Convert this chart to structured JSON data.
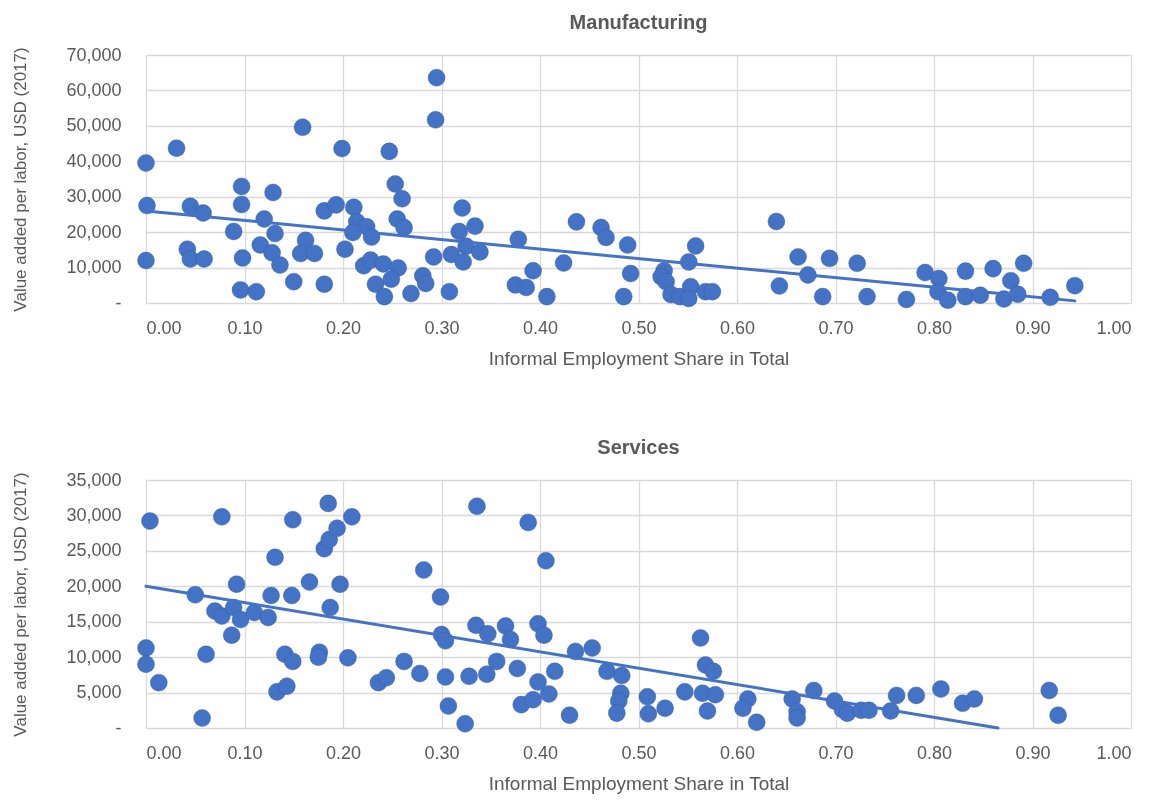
{
  "chart_data": [
    {
      "type": "scatter",
      "title": "Manufacturing",
      "xlabel": "Informal Employment Share in Total",
      "ylabel": "Value added per labor, USD (2017)",
      "xlim": [
        0,
        1
      ],
      "xticks": [
        {
          "value": 0,
          "label": "0.00"
        },
        {
          "value": 0.1,
          "label": "0.10"
        },
        {
          "value": 0.2,
          "label": "0.20"
        },
        {
          "value": 0.3,
          "label": "0.30"
        },
        {
          "value": 0.4,
          "label": "0.40"
        },
        {
          "value": 0.5,
          "label": "0.50"
        },
        {
          "value": 0.6,
          "label": "0.60"
        },
        {
          "value": 0.7,
          "label": "0.70"
        },
        {
          "value": 0.8,
          "label": "0.80"
        },
        {
          "value": 0.9,
          "label": "0.90"
        },
        {
          "value": 1,
          "label": "1.00"
        }
      ],
      "ylim": [
        0,
        70000
      ],
      "yticks": [
        {
          "value": 0,
          "label": "-"
        },
        {
          "value": 10000,
          "label": "10,000"
        },
        {
          "value": 20000,
          "label": "20,000"
        },
        {
          "value": 30000,
          "label": "30,000"
        },
        {
          "value": 40000,
          "label": "40,000"
        },
        {
          "value": 50000,
          "label": "50,000"
        },
        {
          "value": 60000,
          "label": "60,000"
        },
        {
          "value": 70000,
          "label": "70,000"
        }
      ],
      "grid": true,
      "marker": "circle",
      "series": [
        {
          "color": "#4472c4",
          "x": [
            0.0,
            0.031,
            0.001,
            0.0,
            0.045,
            0.058,
            0.042,
            0.045,
            0.059,
            0.089,
            0.097,
            0.097,
            0.098,
            0.096,
            0.112,
            0.12,
            0.129,
            0.131,
            0.116,
            0.128,
            0.136,
            0.15,
            0.159,
            0.162,
            0.157,
            0.171,
            0.181,
            0.181,
            0.193,
            0.199,
            0.202,
            0.211,
            0.214,
            0.224,
            0.21,
            0.229,
            0.221,
            0.228,
            0.241,
            0.256,
            0.233,
            0.242,
            0.249,
            0.247,
            0.253,
            0.26,
            0.255,
            0.262,
            0.269,
            0.281,
            0.284,
            0.292,
            0.295,
            0.294,
            0.308,
            0.31,
            0.321,
            0.318,
            0.334,
            0.325,
            0.322,
            0.339,
            0.378,
            0.375,
            0.386,
            0.393,
            0.407,
            0.424,
            0.437,
            0.462,
            0.467,
            0.489,
            0.492,
            0.485,
            0.526,
            0.523,
            0.528,
            0.533,
            0.542,
            0.551,
            0.558,
            0.553,
            0.551,
            0.568,
            0.575,
            0.64,
            0.643,
            0.662,
            0.672,
            0.687,
            0.694,
            0.722,
            0.732,
            0.772,
            0.791,
            0.805,
            0.804,
            0.814,
            0.832,
            0.832,
            0.847,
            0.86,
            0.878,
            0.871,
            0.885,
            0.891,
            0.918,
            0.943
          ],
          "values": [
            39500,
            43700,
            27500,
            12000,
            27300,
            25400,
            15200,
            12400,
            12400,
            20200,
            32900,
            27800,
            12700,
            3700,
            3200,
            23700,
            31200,
            19600,
            16400,
            14200,
            10700,
            6000,
            49600,
            17700,
            14000,
            14000,
            5300,
            26000,
            27700,
            43600,
            15200,
            27000,
            22900,
            21500,
            19900,
            18600,
            10500,
            12100,
            11000,
            9900,
            5300,
            1800,
            6700,
            42800,
            33600,
            29400,
            23700,
            21300,
            2700,
            7700,
            5500,
            13000,
            63600,
            51700,
            3200,
            13700,
            26800,
            20200,
            21700,
            16000,
            11600,
            14400,
            18000,
            5100,
            4400,
            9100,
            1800,
            11300,
            22900,
            21300,
            18500,
            16400,
            8300,
            1800,
            9100,
            7400,
            6000,
            2400,
            1800,
            11600,
            16100,
            4600,
            1300,
            3200,
            3200,
            23000,
            4800,
            13000,
            7900,
            1800,
            12600,
            11200,
            1800,
            1000,
            8600,
            6900,
            3200,
            800,
            9000,
            1800,
            2200,
            9700,
            6300,
            1100,
            2500,
            11200,
            1600,
            4900
          ]
        },
        {
          "type": "line",
          "color": "#4472c4",
          "marker": "none",
          "x": [
            0,
            0.943
          ],
          "values": [
            26000,
            600
          ]
        }
      ]
    },
    {
      "type": "scatter",
      "title": "Services",
      "xlabel": "Informal Employment Share in Total",
      "ylabel": "Value added per labor, USD (2017)",
      "xlim": [
        0,
        1
      ],
      "xticks": [
        {
          "value": 0,
          "label": "0.00"
        },
        {
          "value": 0.1,
          "label": "0.10"
        },
        {
          "value": 0.2,
          "label": "0.20"
        },
        {
          "value": 0.3,
          "label": "0.30"
        },
        {
          "value": 0.4,
          "label": "0.40"
        },
        {
          "value": 0.5,
          "label": "0.50"
        },
        {
          "value": 0.6,
          "label": "0.60"
        },
        {
          "value": 0.7,
          "label": "0.70"
        },
        {
          "value": 0.8,
          "label": "0.80"
        },
        {
          "value": 0.9,
          "label": "0.90"
        },
        {
          "value": 1,
          "label": "1.00"
        }
      ],
      "ylim": [
        0,
        35000
      ],
      "yticks": [
        {
          "value": 0,
          "label": "-"
        },
        {
          "value": 5000,
          "label": "5,000"
        },
        {
          "value": 10000,
          "label": "10,000"
        },
        {
          "value": 15000,
          "label": "15,000"
        },
        {
          "value": 20000,
          "label": "20,000"
        },
        {
          "value": 25000,
          "label": "25,000"
        },
        {
          "value": 30000,
          "label": "30,000"
        },
        {
          "value": 35000,
          "label": "35,000"
        }
      ],
      "grid": true,
      "marker": "circle",
      "series": [
        {
          "color": "#4472c4",
          "x": [
            0.004,
            0.0,
            0.0,
            0.013,
            0.057,
            0.077,
            0.05,
            0.061,
            0.07,
            0.077,
            0.087,
            0.092,
            0.089,
            0.096,
            0.11,
            0.124,
            0.131,
            0.127,
            0.141,
            0.149,
            0.133,
            0.143,
            0.148,
            0.149,
            0.166,
            0.176,
            0.175,
            0.187,
            0.181,
            0.186,
            0.194,
            0.185,
            0.209,
            0.197,
            0.205,
            0.282,
            0.299,
            0.3,
            0.304,
            0.262,
            0.278,
            0.236,
            0.244,
            0.304,
            0.307,
            0.324,
            0.336,
            0.335,
            0.347,
            0.328,
            0.346,
            0.356,
            0.365,
            0.37,
            0.377,
            0.381,
            0.393,
            0.388,
            0.398,
            0.404,
            0.406,
            0.398,
            0.409,
            0.415,
            0.43,
            0.436,
            0.453,
            0.468,
            0.483,
            0.482,
            0.48,
            0.478,
            0.509,
            0.51,
            0.527,
            0.547,
            0.563,
            0.568,
            0.576,
            0.565,
            0.578,
            0.57,
            0.611,
            0.606,
            0.62,
            0.656,
            0.661,
            0.661,
            0.678,
            0.699,
            0.707,
            0.712,
            0.726,
            0.734,
            0.756,
            0.762,
            0.782,
            0.807,
            0.829,
            0.841,
            0.917,
            0.926
          ],
          "values": [
            29200,
            11300,
            9000,
            6400,
            1400,
            29800,
            18800,
            10400,
            16500,
            15800,
            13100,
            20300,
            17000,
            15300,
            16300,
            15600,
            24100,
            18700,
            10400,
            9400,
            5100,
            5900,
            18700,
            29400,
            20600,
            10700,
            10000,
            17000,
            25300,
            26600,
            28200,
            31700,
            29800,
            20300,
            9900,
            22300,
            18500,
            13200,
            12300,
            9400,
            7700,
            6400,
            7100,
            7200,
            3100,
            600,
            31300,
            14500,
            13300,
            7300,
            7600,
            9400,
            14400,
            12500,
            8400,
            3300,
            4000,
            29000,
            14700,
            13100,
            23600,
            6500,
            4800,
            8000,
            1800,
            10800,
            11300,
            8000,
            7400,
            4900,
            3800,
            2100,
            4400,
            2000,
            2800,
            5100,
            12700,
            8900,
            8000,
            4900,
            4700,
            2400,
            4100,
            2800,
            800,
            4100,
            2300,
            1400,
            5300,
            3800,
            2600,
            2100,
            2500,
            2500,
            2400,
            4600,
            4600,
            5500,
            3500,
            4100,
            5300,
            1800
          ]
        },
        {
          "type": "line",
          "color": "#4472c4",
          "marker": "none",
          "x": [
            0,
            0.865
          ],
          "values": [
            20000,
            0
          ]
        }
      ]
    }
  ]
}
